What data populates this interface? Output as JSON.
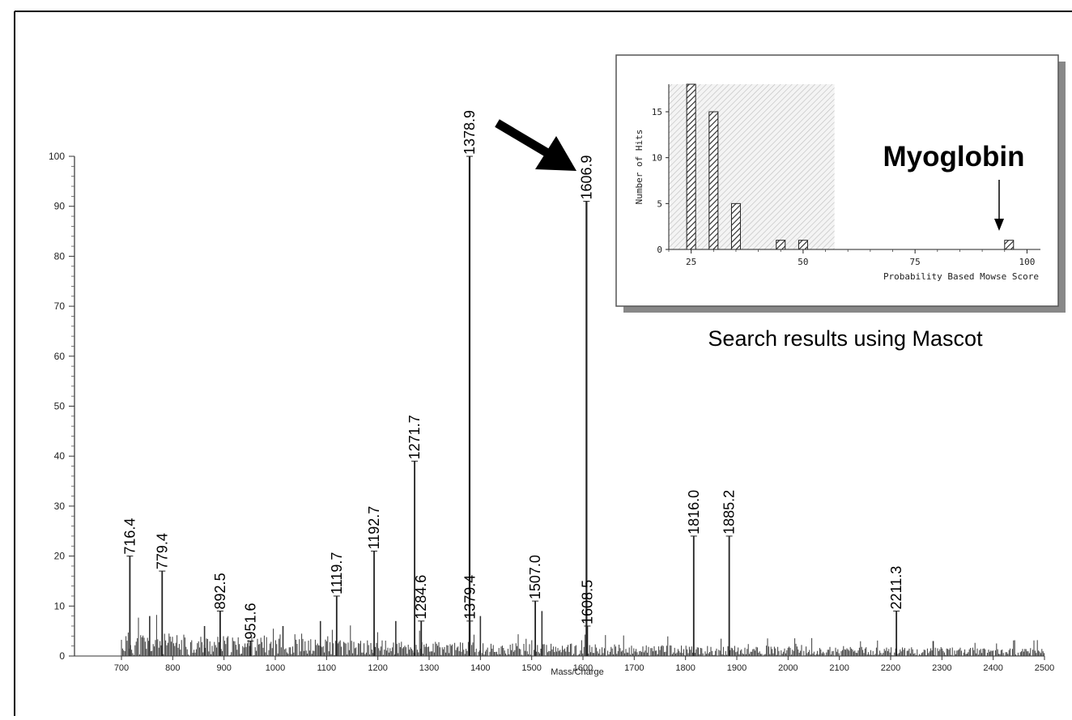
{
  "chart_data": [
    {
      "type": "bar",
      "variant": "mass-spectrum",
      "xlabel": "Mass/Charge",
      "ylabel": "",
      "xlim": [
        700,
        2500
      ],
      "ylim": [
        0,
        100
      ],
      "xticks": [
        700,
        800,
        900,
        1000,
        1100,
        1200,
        1300,
        1400,
        1500,
        1600,
        1700,
        1800,
        1900,
        2000,
        2100,
        2200,
        2300,
        2400,
        2500
      ],
      "yticks": [
        0,
        10,
        20,
        30,
        40,
        50,
        60,
        70,
        80,
        90,
        100
      ],
      "peaks": [
        {
          "mz": 716.4,
          "intensity": 20,
          "label": "716.4"
        },
        {
          "mz": 779.4,
          "intensity": 17,
          "label": "779.4"
        },
        {
          "mz": 892.5,
          "intensity": 9,
          "label": "892.5"
        },
        {
          "mz": 951.6,
          "intensity": 3,
          "label": "951.6"
        },
        {
          "mz": 1119.7,
          "intensity": 12,
          "label": "1119.7"
        },
        {
          "mz": 1192.7,
          "intensity": 21,
          "label": "1192.7"
        },
        {
          "mz": 1271.7,
          "intensity": 39,
          "label": "1271.7"
        },
        {
          "mz": 1284.6,
          "intensity": 7,
          "label": "1284.6"
        },
        {
          "mz": 1378.9,
          "intensity": 100,
          "label": "1378.9"
        },
        {
          "mz": 1379.4,
          "intensity": 7,
          "label": "1379.4"
        },
        {
          "mz": 1507.0,
          "intensity": 11,
          "label": "1507.0"
        },
        {
          "mz": 1606.9,
          "intensity": 91,
          "label": "1606.9"
        },
        {
          "mz": 1608.5,
          "intensity": 6,
          "label": "1608.5"
        },
        {
          "mz": 1816.0,
          "intensity": 24,
          "label": "1816.0"
        },
        {
          "mz": 1885.2,
          "intensity": 24,
          "label": "1885.2"
        },
        {
          "mz": 2211.3,
          "intensity": 9,
          "label": "2211.3"
        }
      ],
      "minor_peaks": [
        {
          "mz": 755,
          "intensity": 8
        },
        {
          "mz": 862,
          "intensity": 6
        },
        {
          "mz": 1015,
          "intensity": 6
        },
        {
          "mz": 1088,
          "intensity": 7
        },
        {
          "mz": 1235,
          "intensity": 7
        },
        {
          "mz": 1400,
          "intensity": 8
        },
        {
          "mz": 1520,
          "intensity": 9
        },
        {
          "mz": 2283,
          "intensity": 3
        }
      ],
      "grid": false
    },
    {
      "type": "bar",
      "variant": "histogram-inset",
      "xlabel": "Probability Based Mowse Score",
      "ylabel": "Number of Hits",
      "xlim": [
        20,
        103
      ],
      "ylim": [
        0,
        18
      ],
      "xticks": [
        25,
        50,
        75,
        100
      ],
      "yticks": [
        0,
        5,
        10,
        15
      ],
      "bars": [
        {
          "x": 25,
          "value": 18
        },
        {
          "x": 30,
          "value": 15
        },
        {
          "x": 35,
          "value": 5
        },
        {
          "x": 45,
          "value": 1
        },
        {
          "x": 50,
          "value": 1
        },
        {
          "x": 96,
          "value": 1
        }
      ],
      "shaded_region": [
        20,
        57
      ],
      "grid": false
    }
  ],
  "annotations": {
    "highlight_label": "Myoglobin",
    "inset_caption": "Search results using Mascot"
  }
}
